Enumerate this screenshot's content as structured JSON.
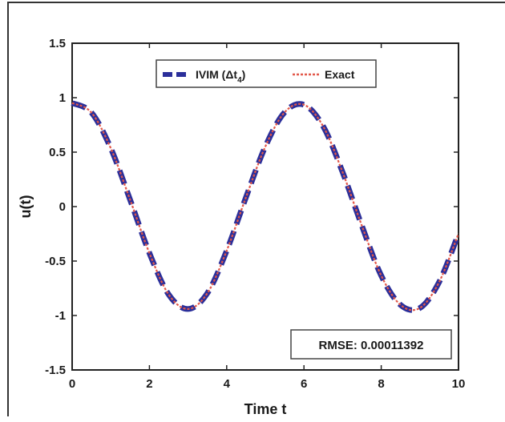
{
  "chart_data": {
    "type": "line",
    "xlabel": "Time t",
    "ylabel": "u(t)",
    "xlim": [
      0,
      10
    ],
    "ylim": [
      -1.5,
      1.5
    ],
    "xticks": [
      "0",
      "2",
      "4",
      "6",
      "8",
      "10"
    ],
    "yticks": [
      "1.5",
      "1",
      "0.5",
      "0",
      "-0.5",
      "-1",
      "-1.5"
    ],
    "grid": false,
    "legend_position": "top-center",
    "series": [
      {
        "name_main": "IVIM (Δt",
        "name_sub": "4",
        "name_close": ")",
        "style": "dashed",
        "color": "#2b2f9a",
        "x": [
          0,
          0.5,
          1,
          1.5,
          2,
          2.5,
          3,
          3.5,
          4,
          4.5,
          5,
          5.5,
          6,
          6.5,
          7,
          7.5,
          8,
          8.5,
          9,
          9.5,
          10
        ],
        "y": [
          0.951,
          0.863,
          0.536,
          0.063,
          -0.427,
          -0.808,
          -0.94,
          -0.795,
          -0.405,
          0.086,
          0.551,
          0.866,
          0.935,
          0.735,
          0.316,
          -0.177,
          -0.634,
          -0.903,
          -0.931,
          -0.692,
          -0.248
        ]
      },
      {
        "name": "Exact",
        "style": "dotted",
        "color": "#e2584a",
        "x": [
          0,
          0.5,
          1,
          1.5,
          2,
          2.5,
          3,
          3.5,
          4,
          4.5,
          5,
          5.5,
          6,
          6.5,
          7,
          7.5,
          8,
          8.5,
          9,
          9.5,
          10
        ],
        "y": [
          0.951,
          0.863,
          0.536,
          0.063,
          -0.427,
          -0.808,
          -0.94,
          -0.795,
          -0.405,
          0.086,
          0.551,
          0.866,
          0.935,
          0.735,
          0.316,
          -0.177,
          -0.634,
          -0.903,
          -0.931,
          -0.692,
          -0.248
        ]
      }
    ],
    "annotation": "RMSE: 0.00011392"
  }
}
